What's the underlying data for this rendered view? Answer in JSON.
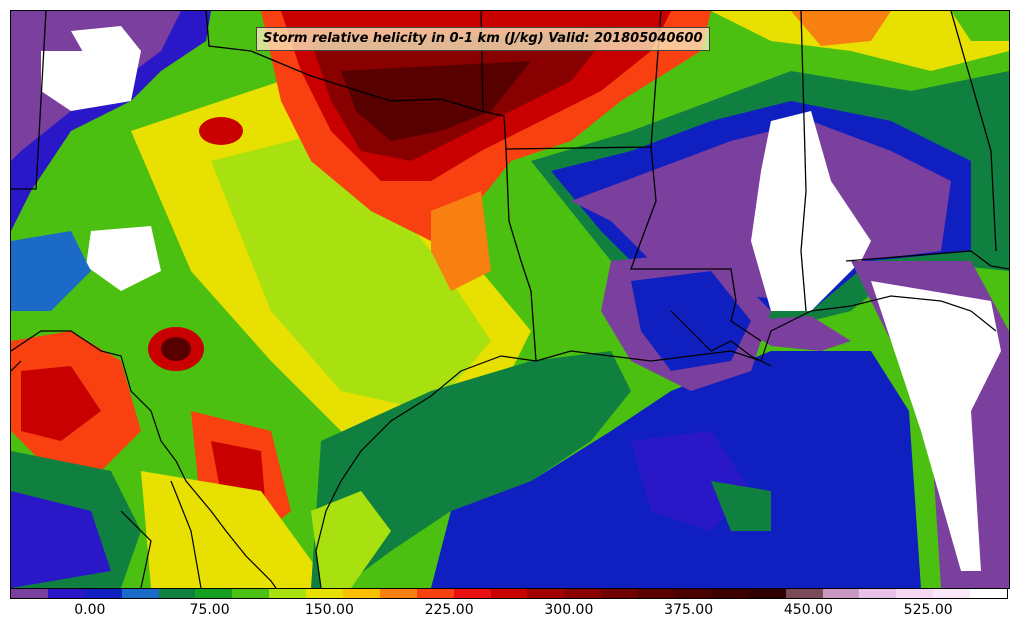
{
  "map": {
    "title": "Storm relative helicity in 0-1 km (J/kg) Valid: 201805040600",
    "variable": "Storm relative helicity in 0-1 km",
    "units": "J/kg",
    "valid_time": "201805040600",
    "region_shown": "Texas, Louisiana, Gulf of Mexico, northern Mexico"
  },
  "colorbar": {
    "colors": [
      "#7b3f9e",
      "#2a18c8",
      "#1020c0",
      "#1c6ac8",
      "#108040",
      "#16a020",
      "#4cc010",
      "#a8e010",
      "#e8e000",
      "#f8c000",
      "#f88010",
      "#f84010",
      "#e81010",
      "#c80000",
      "#a00000",
      "#880000",
      "#700000",
      "#580000",
      "#480000",
      "#3c0000",
      "#300000",
      "#7a4a58",
      "#c898c0",
      "#e8c0e8",
      "#f4d8f4",
      "#fae8fa",
      "#ffffff"
    ],
    "tick_labels": [
      "0.00",
      "75.00",
      "150.00",
      "225.00",
      "300.00",
      "375.00",
      "450.00",
      "525.00"
    ],
    "tick_values": [
      0,
      75,
      150,
      225,
      300,
      375,
      450,
      525
    ],
    "range": [
      -50,
      575
    ],
    "interval": 25
  }
}
